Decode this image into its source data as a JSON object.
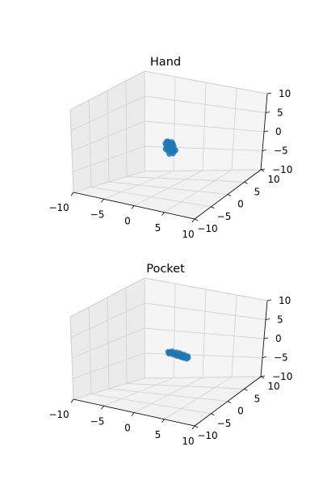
{
  "chart_data": [
    {
      "type": "scatter3d",
      "title": "Hand",
      "xlim": [
        -10,
        10
      ],
      "ylim": [
        -10,
        10
      ],
      "zlim": [
        -10,
        10
      ],
      "x_ticks": [
        "−10",
        "−5",
        "0",
        "5",
        "10"
      ],
      "y_ticks": [
        "−10",
        "−5",
        "0",
        "5",
        "10"
      ],
      "z_ticks": [
        "−10",
        "−5",
        "0",
        "5",
        "10"
      ],
      "grid": true,
      "marker_color": "#1f77b4",
      "points": [
        [
          -0.4,
          0.3,
          1.2
        ],
        [
          -0.2,
          0.1,
          1.4
        ],
        [
          0.0,
          0.2,
          1.1
        ],
        [
          0.2,
          0.4,
          1.3
        ],
        [
          -0.6,
          0.0,
          0.9
        ],
        [
          -0.3,
          -0.2,
          0.7
        ],
        [
          0.1,
          -0.1,
          0.8
        ],
        [
          0.4,
          0.1,
          0.6
        ],
        [
          -0.5,
          0.4,
          0.4
        ],
        [
          -0.1,
          0.3,
          0.2
        ],
        [
          0.3,
          0.2,
          0.1
        ],
        [
          0.5,
          -0.2,
          0.3
        ],
        [
          -0.4,
          -0.3,
          -0.1
        ],
        [
          0.0,
          -0.4,
          -0.3
        ],
        [
          0.2,
          0.0,
          -0.2
        ],
        [
          0.6,
          0.3,
          -0.1
        ],
        [
          -0.2,
          0.5,
          -0.5
        ],
        [
          0.1,
          0.3,
          -0.7
        ],
        [
          0.4,
          -0.1,
          -0.6
        ],
        [
          0.8,
          0.1,
          -0.4
        ],
        [
          -0.3,
          0.0,
          0.0
        ],
        [
          0.7,
          -0.3,
          0.2
        ],
        [
          0.9,
          0.2,
          -0.2
        ],
        [
          0.3,
          0.5,
          0.9
        ],
        [
          -0.1,
          -0.2,
          1.0
        ],
        [
          0.5,
          0.4,
          0.5
        ],
        [
          0.2,
          -0.3,
          -1.0
        ],
        [
          0.6,
          0.0,
          -0.9
        ],
        [
          -0.5,
          0.2,
          1.3
        ],
        [
          0.0,
          0.6,
          0.5
        ]
      ]
    },
    {
      "type": "scatter3d",
      "title": "Pocket",
      "xlim": [
        -10,
        10
      ],
      "ylim": [
        -10,
        10
      ],
      "zlim": [
        -10,
        10
      ],
      "x_ticks": [
        "−10",
        "−5",
        "0",
        "5",
        "10"
      ],
      "y_ticks": [
        "−10",
        "−5",
        "0",
        "5",
        "10"
      ],
      "z_ticks": [
        "−10",
        "−5",
        "0",
        "5",
        "10"
      ],
      "grid": true,
      "marker_color": "#1f77b4",
      "points": [
        [
          0.2,
          -0.6,
          1.0
        ],
        [
          0.5,
          -0.4,
          0.9
        ],
        [
          0.8,
          -0.3,
          0.8
        ],
        [
          1.0,
          -0.1,
          0.7
        ],
        [
          1.3,
          0.0,
          0.6
        ],
        [
          1.6,
          0.1,
          0.5
        ],
        [
          1.9,
          0.2,
          0.4
        ],
        [
          2.2,
          0.3,
          0.3
        ],
        [
          2.5,
          0.4,
          0.2
        ],
        [
          2.8,
          0.5,
          0.1
        ],
        [
          0.4,
          -0.7,
          0.7
        ],
        [
          0.9,
          -0.5,
          0.6
        ],
        [
          1.4,
          -0.2,
          0.3
        ],
        [
          1.8,
          0.0,
          0.2
        ],
        [
          2.3,
          0.2,
          0.0
        ],
        [
          0.6,
          -0.2,
          1.1
        ],
        [
          1.1,
          0.1,
          0.9
        ],
        [
          1.7,
          0.4,
          0.6
        ],
        [
          2.1,
          0.6,
          0.5
        ],
        [
          2.6,
          0.7,
          0.3
        ],
        [
          0.3,
          -0.4,
          0.8
        ],
        [
          1.2,
          -0.3,
          0.5
        ],
        [
          2.0,
          0.1,
          0.1
        ],
        [
          2.7,
          0.3,
          -0.1
        ],
        [
          1.5,
          0.3,
          0.8
        ]
      ]
    }
  ]
}
